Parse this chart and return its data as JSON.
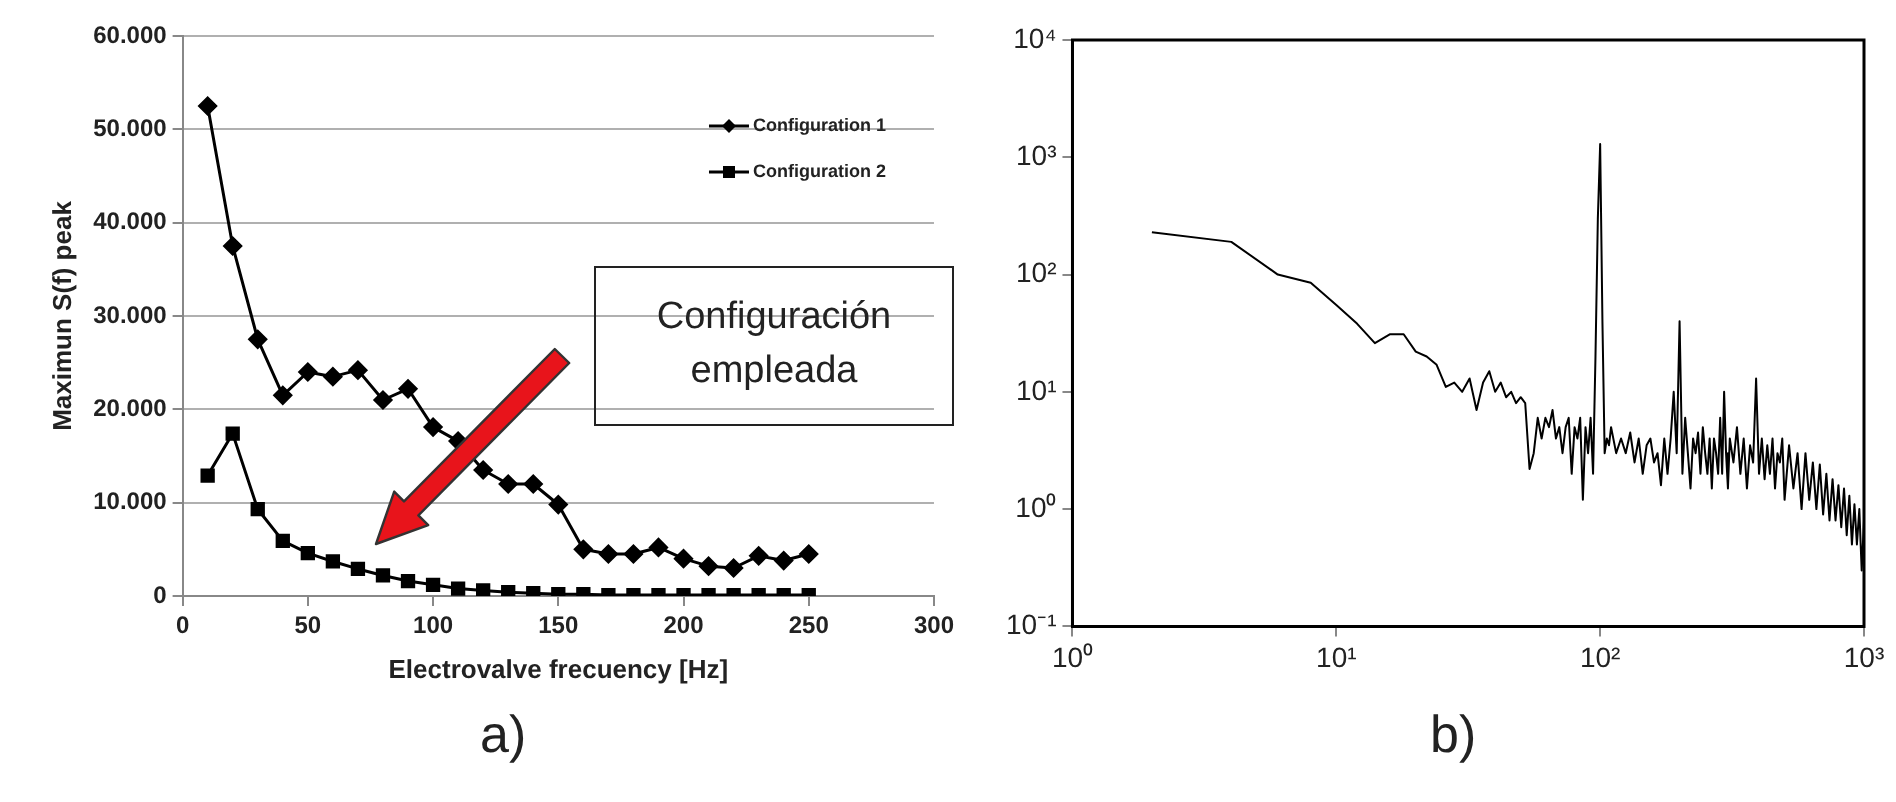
{
  "chart_data": [
    {
      "type": "line",
      "xlabel": "Electrovalve frecuency [Hz]",
      "ylabel": "Maximun S(f) peak",
      "x": [
        10,
        20,
        30,
        40,
        50,
        60,
        70,
        80,
        90,
        100,
        110,
        120,
        130,
        140,
        150,
        160,
        170,
        180,
        190,
        200,
        210,
        220,
        230,
        240,
        250
      ],
      "series": [
        {
          "name": "Configuration 1",
          "color": "#000000",
          "marker": "diamond",
          "values": [
            52500,
            37500,
            27500,
            21500,
            24000,
            23500,
            24200,
            21000,
            22200,
            18100,
            16600,
            13500,
            12000,
            12000,
            9800,
            5000,
            4500,
            4500,
            5200,
            4000,
            3200,
            3000,
            4300,
            3800,
            4500
          ]
        },
        {
          "name": "Configuration 2",
          "color": "#000000",
          "marker": "square",
          "values": [
            12900,
            17400,
            9300,
            5900,
            4600,
            3700,
            2900,
            2200,
            1600,
            1200,
            800,
            600,
            400,
            300,
            200,
            200,
            100,
            100,
            100,
            100,
            100,
            100,
            100,
            100,
            100
          ]
        }
      ],
      "xlim": [
        0,
        300
      ],
      "xticks": [
        0,
        50,
        100,
        150,
        200,
        250,
        300
      ],
      "ylim": [
        0,
        60000
      ],
      "yticks": [
        {
          "value": 0,
          "label": "0"
        },
        {
          "value": 10000,
          "label": "10.000"
        },
        {
          "value": 20000,
          "label": "20.000"
        },
        {
          "value": 30000,
          "label": "30.000"
        },
        {
          "value": 40000,
          "label": "40.000"
        },
        {
          "value": 50000,
          "label": "50.000"
        },
        {
          "value": 60000,
          "label": "60.000"
        }
      ],
      "grid": "y",
      "legend": "top right",
      "line_style": "solid",
      "annotations": [
        "Configuración empleada",
        "a)"
      ]
    },
    {
      "type": "line",
      "x": [
        2,
        4,
        6,
        8,
        10,
        12,
        14,
        16,
        18,
        20,
        22,
        24,
        26,
        28,
        30,
        32,
        34,
        36,
        38,
        40,
        42,
        44,
        46,
        48,
        50,
        52,
        54,
        56,
        58,
        60,
        62,
        64,
        66,
        68,
        70,
        72,
        74,
        76,
        78,
        80,
        82,
        84,
        86,
        88,
        90,
        92,
        94,
        96,
        98,
        100,
        102,
        104,
        106,
        108,
        110,
        115,
        120,
        125,
        130,
        135,
        140,
        145,
        150,
        155,
        160,
        165,
        170,
        175,
        180,
        185,
        190,
        195,
        200,
        205,
        210,
        215,
        220,
        225,
        230,
        235,
        240,
        245,
        250,
        255,
        260,
        265,
        270,
        275,
        280,
        285,
        290,
        295,
        300,
        305,
        310,
        320,
        330,
        340,
        350,
        360,
        370,
        380,
        390,
        400,
        410,
        420,
        430,
        440,
        450,
        460,
        470,
        480,
        490,
        500,
        520,
        540,
        560,
        580,
        600,
        620,
        640,
        660,
        680,
        700,
        720,
        740,
        760,
        780,
        800,
        820,
        840,
        860,
        880,
        900,
        920,
        940,
        960,
        980,
        1000
      ],
      "series": [
        {
          "color": "#000000",
          "values": [
            230,
            190,
            100,
            85,
            55,
            38,
            26,
            31,
            31,
            22,
            20,
            17,
            11,
            12,
            10,
            13,
            7,
            12,
            15,
            10,
            12,
            9,
            10,
            8,
            9,
            8,
            2.2,
            3,
            6,
            4,
            6,
            5,
            7,
            4,
            5,
            3,
            5,
            6,
            2,
            5,
            4,
            6,
            1.2,
            5,
            3,
            6,
            2,
            20,
            300,
            1300,
            40,
            3,
            4,
            3.5,
            5,
            3,
            4,
            3,
            4.5,
            2.5,
            4,
            2,
            3.5,
            4,
            2.5,
            3,
            1.6,
            4,
            2,
            4,
            10,
            3,
            40,
            2,
            6,
            3,
            1.5,
            4,
            3,
            4.5,
            2,
            5,
            3,
            2,
            4,
            1.5,
            4,
            3,
            2,
            6,
            2,
            10,
            3,
            1.5,
            4,
            2.5,
            5,
            2,
            4,
            1.5,
            3.5,
            2.5,
            13,
            2,
            4,
            1.8,
            3.5,
            2,
            4,
            1.5,
            3,
            2.5,
            4,
            1.2,
            3.5,
            1.5,
            3,
            1,
            3,
            1.2,
            2.5,
            1,
            2.4,
            0.9,
            2,
            0.8,
            1.8,
            0.8,
            1.6,
            0.7,
            1.5,
            0.6,
            1.3,
            0.5,
            1.1,
            0.5,
            1,
            0.3,
            0.8
          ]
        }
      ],
      "log": "xy",
      "xlim": [
        1,
        1000
      ],
      "xticks": [
        {
          "value": 1,
          "label": "10⁰"
        },
        {
          "value": 10,
          "label": "10¹"
        },
        {
          "value": 100,
          "label": "10²"
        },
        {
          "value": 1000,
          "label": "10³"
        }
      ],
      "ylim": [
        0.1,
        10000
      ],
      "yticks": [
        {
          "value": 0.1,
          "label": "10⁻¹"
        },
        {
          "value": 1,
          "label": "10⁰"
        },
        {
          "value": 10,
          "label": "10¹"
        },
        {
          "value": 100,
          "label": "10²"
        },
        {
          "value": 1000,
          "label": "10³"
        },
        {
          "value": 10000,
          "label": "10⁴"
        }
      ],
      "grid": false,
      "marker": "none",
      "line_style": "solid",
      "annotations": [
        "b)"
      ]
    }
  ]
}
